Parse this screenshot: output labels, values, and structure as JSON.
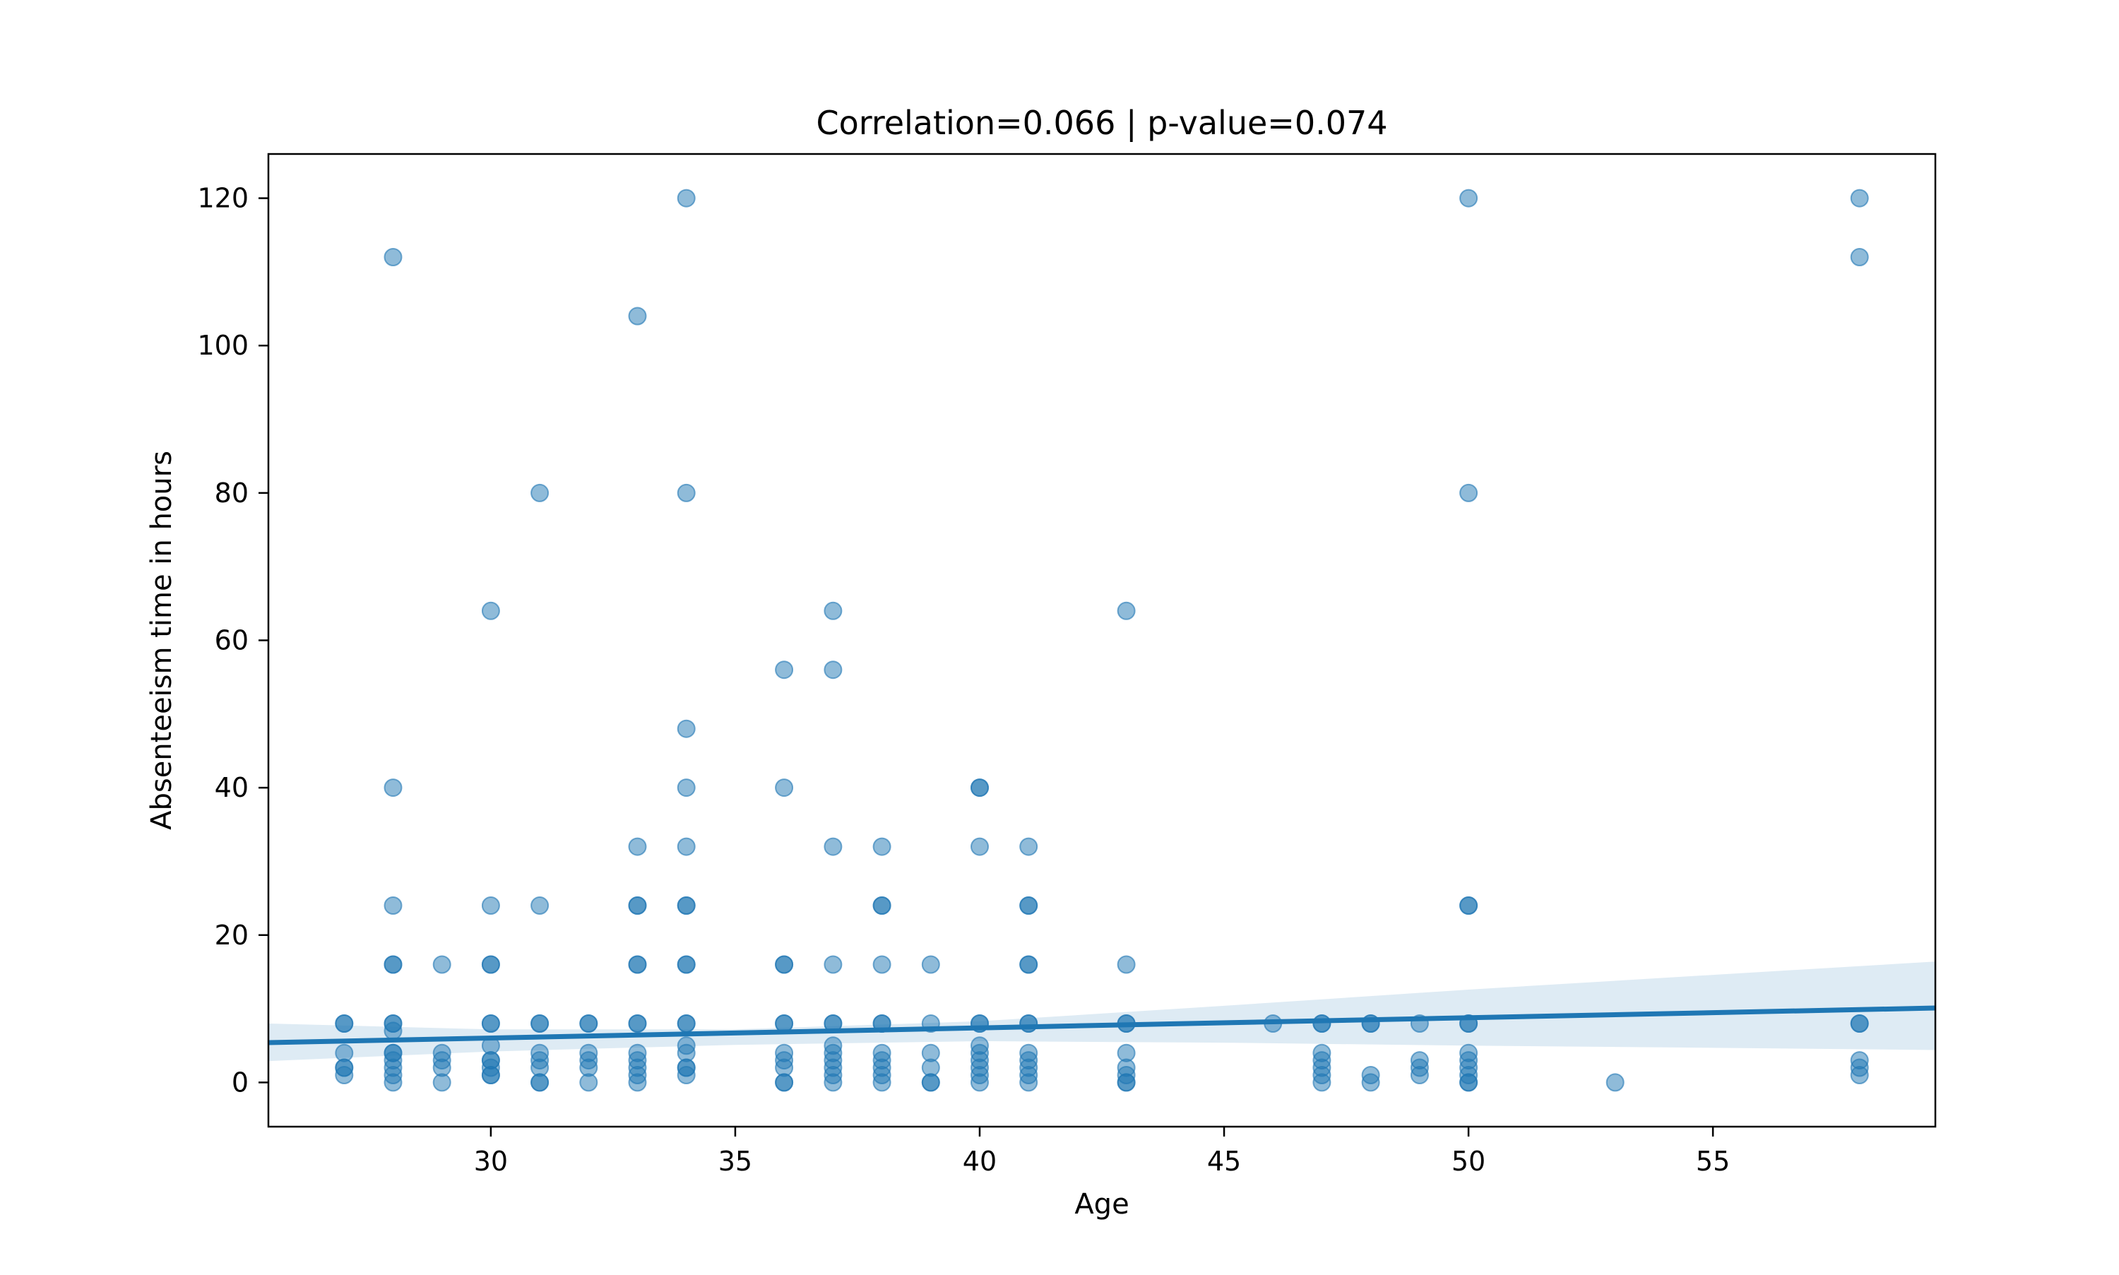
{
  "chart_data": {
    "type": "scatter",
    "title": "Correlation=0.066 | p-value=0.074",
    "xlabel": "Age",
    "ylabel": "Absenteeism time in hours",
    "xlim": [
      25.45,
      59.55
    ],
    "ylim": [
      -6,
      126
    ],
    "xticks": [
      30,
      35,
      40,
      45,
      50,
      55
    ],
    "yticks": [
      0,
      20,
      40,
      60,
      80,
      100,
      120
    ],
    "grid": false,
    "legend": "none",
    "colors": {
      "points": "#1f77b4",
      "line": "#1f77b4",
      "band": "#1f77b4"
    },
    "points": [
      [
        27,
        1
      ],
      [
        27,
        2
      ],
      [
        27,
        2
      ],
      [
        27,
        4
      ],
      [
        27,
        8
      ],
      [
        27,
        8
      ],
      [
        28,
        0
      ],
      [
        28,
        1
      ],
      [
        28,
        2
      ],
      [
        28,
        3
      ],
      [
        28,
        4
      ],
      [
        28,
        4
      ],
      [
        28,
        7
      ],
      [
        28,
        8
      ],
      [
        28,
        8
      ],
      [
        28,
        16
      ],
      [
        28,
        16
      ],
      [
        28,
        24
      ],
      [
        28,
        40
      ],
      [
        28,
        112
      ],
      [
        29,
        0
      ],
      [
        29,
        2
      ],
      [
        29,
        3
      ],
      [
        29,
        4
      ],
      [
        29,
        16
      ],
      [
        30,
        1
      ],
      [
        30,
        1
      ],
      [
        30,
        2
      ],
      [
        30,
        3
      ],
      [
        30,
        3
      ],
      [
        30,
        5
      ],
      [
        30,
        8
      ],
      [
        30,
        8
      ],
      [
        30,
        16
      ],
      [
        30,
        16
      ],
      [
        30,
        24
      ],
      [
        30,
        64
      ],
      [
        31,
        0
      ],
      [
        31,
        0
      ],
      [
        31,
        2
      ],
      [
        31,
        3
      ],
      [
        31,
        4
      ],
      [
        31,
        8
      ],
      [
        31,
        8
      ],
      [
        31,
        24
      ],
      [
        31,
        80
      ],
      [
        32,
        0
      ],
      [
        32,
        2
      ],
      [
        32,
        3
      ],
      [
        32,
        4
      ],
      [
        32,
        8
      ],
      [
        32,
        8
      ],
      [
        33,
        0
      ],
      [
        33,
        1
      ],
      [
        33,
        2
      ],
      [
        33,
        3
      ],
      [
        33,
        4
      ],
      [
        33,
        8
      ],
      [
        33,
        8
      ],
      [
        33,
        16
      ],
      [
        33,
        16
      ],
      [
        33,
        24
      ],
      [
        33,
        24
      ],
      [
        33,
        32
      ],
      [
        33,
        104
      ],
      [
        34,
        1
      ],
      [
        34,
        2
      ],
      [
        34,
        2
      ],
      [
        34,
        4
      ],
      [
        34,
        5
      ],
      [
        34,
        8
      ],
      [
        34,
        8
      ],
      [
        34,
        16
      ],
      [
        34,
        16
      ],
      [
        34,
        24
      ],
      [
        34,
        24
      ],
      [
        34,
        32
      ],
      [
        34,
        40
      ],
      [
        34,
        48
      ],
      [
        34,
        80
      ],
      [
        34,
        120
      ],
      [
        36,
        0
      ],
      [
        36,
        0
      ],
      [
        36,
        2
      ],
      [
        36,
        3
      ],
      [
        36,
        4
      ],
      [
        36,
        8
      ],
      [
        36,
        8
      ],
      [
        36,
        16
      ],
      [
        36,
        16
      ],
      [
        36,
        40
      ],
      [
        36,
        56
      ],
      [
        37,
        0
      ],
      [
        37,
        1
      ],
      [
        37,
        2
      ],
      [
        37,
        3
      ],
      [
        37,
        4
      ],
      [
        37,
        5
      ],
      [
        37,
        8
      ],
      [
        37,
        8
      ],
      [
        37,
        16
      ],
      [
        37,
        32
      ],
      [
        37,
        56
      ],
      [
        37,
        64
      ],
      [
        38,
        0
      ],
      [
        38,
        1
      ],
      [
        38,
        2
      ],
      [
        38,
        3
      ],
      [
        38,
        4
      ],
      [
        38,
        8
      ],
      [
        38,
        8
      ],
      [
        38,
        16
      ],
      [
        38,
        24
      ],
      [
        38,
        24
      ],
      [
        38,
        32
      ],
      [
        39,
        0
      ],
      [
        39,
        0
      ],
      [
        39,
        2
      ],
      [
        39,
        4
      ],
      [
        39,
        8
      ],
      [
        39,
        16
      ],
      [
        40,
        0
      ],
      [
        40,
        1
      ],
      [
        40,
        2
      ],
      [
        40,
        3
      ],
      [
        40,
        4
      ],
      [
        40,
        5
      ],
      [
        40,
        8
      ],
      [
        40,
        8
      ],
      [
        40,
        32
      ],
      [
        40,
        40
      ],
      [
        40,
        40
      ],
      [
        41,
        0
      ],
      [
        41,
        1
      ],
      [
        41,
        2
      ],
      [
        41,
        3
      ],
      [
        41,
        4
      ],
      [
        41,
        8
      ],
      [
        41,
        8
      ],
      [
        41,
        16
      ],
      [
        41,
        16
      ],
      [
        41,
        24
      ],
      [
        41,
        24
      ],
      [
        41,
        32
      ],
      [
        43,
        0
      ],
      [
        43,
        0
      ],
      [
        43,
        1
      ],
      [
        43,
        2
      ],
      [
        43,
        4
      ],
      [
        43,
        8
      ],
      [
        43,
        8
      ],
      [
        43,
        16
      ],
      [
        43,
        64
      ],
      [
        46,
        8
      ],
      [
        47,
        0
      ],
      [
        47,
        1
      ],
      [
        47,
        2
      ],
      [
        47,
        3
      ],
      [
        47,
        4
      ],
      [
        47,
        8
      ],
      [
        47,
        8
      ],
      [
        48,
        0
      ],
      [
        48,
        1
      ],
      [
        48,
        8
      ],
      [
        48,
        8
      ],
      [
        49,
        1
      ],
      [
        49,
        2
      ],
      [
        49,
        3
      ],
      [
        49,
        8
      ],
      [
        50,
        0
      ],
      [
        50,
        0
      ],
      [
        50,
        1
      ],
      [
        50,
        2
      ],
      [
        50,
        3
      ],
      [
        50,
        4
      ],
      [
        50,
        8
      ],
      [
        50,
        8
      ],
      [
        50,
        24
      ],
      [
        50,
        24
      ],
      [
        50,
        80
      ],
      [
        50,
        120
      ],
      [
        53,
        0
      ],
      [
        58,
        1
      ],
      [
        58,
        2
      ],
      [
        58,
        3
      ],
      [
        58,
        8
      ],
      [
        58,
        8
      ],
      [
        58,
        112
      ],
      [
        58,
        120
      ]
    ],
    "regression_line": {
      "x": [
        25.45,
        59.55
      ],
      "y": [
        5.4,
        10.1
      ]
    },
    "confidence_band": {
      "x": [
        25.45,
        30,
        35,
        40,
        45,
        50,
        55,
        59.55
      ],
      "lower": [
        2.9,
        4.2,
        5.1,
        5.6,
        5.4,
        5.0,
        4.7,
        4.4
      ],
      "upper": [
        8.0,
        7.2,
        7.2,
        8.3,
        10.4,
        12.6,
        14.6,
        16.4
      ]
    }
  }
}
